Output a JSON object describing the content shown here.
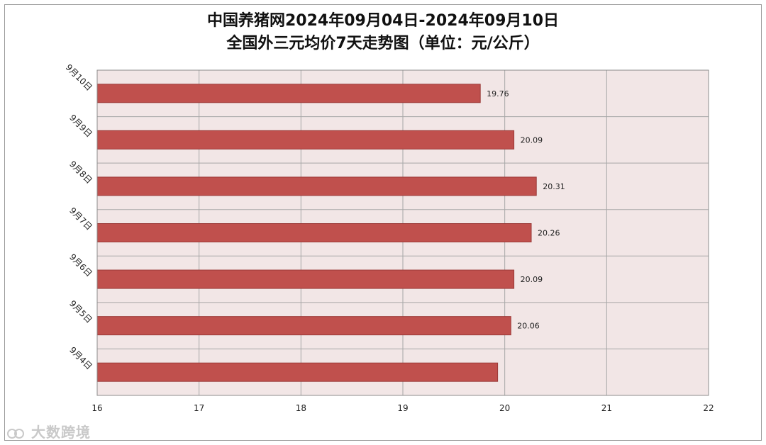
{
  "watermark": "大数跨境",
  "colors": {
    "bar": "#C0504D",
    "bar_edge": "#9b3a38",
    "plot_bg": "#F2E6E6",
    "grid": "#a7a7a7"
  },
  "chart_data": {
    "type": "bar",
    "orientation": "horizontal",
    "title": "中国养猪网2024年09月04日-2024年09月10日",
    "subtitle": "全国外三元均价7天走势图（单位：元/公斤）",
    "xlabel": "",
    "ylabel": "",
    "xlim": [
      16,
      22
    ],
    "xticks": [
      "16",
      "17",
      "18",
      "19",
      "20",
      "21",
      "22"
    ],
    "grid": true,
    "legend": "none",
    "categories": [
      "9月10日",
      "9月9日",
      "9月8日",
      "9月7日",
      "9月6日",
      "9月5日",
      "9月4日"
    ],
    "values": [
      19.76,
      20.09,
      20.31,
      20.26,
      20.09,
      20.06,
      19.93
    ],
    "data_labels": [
      "19.76",
      "20.09",
      "20.31",
      "20.26",
      "20.09",
      "20.06",
      ""
    ]
  }
}
